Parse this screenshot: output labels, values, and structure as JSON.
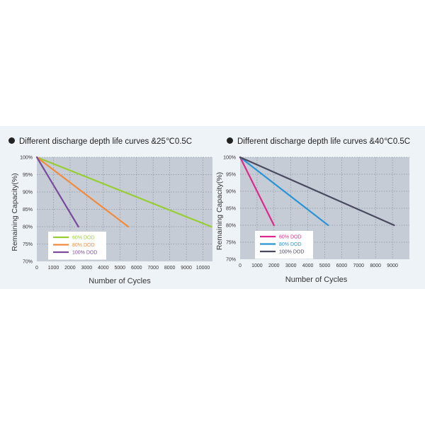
{
  "charts": [
    {
      "title": "Different discharge depth life curves &25℃0.5C",
      "chart_data": {
        "type": "line",
        "xlabel": "Number of Cycles",
        "ylabel": "Remaining Capacity(%)",
        "xlim": [
          0,
          11000
        ],
        "ylim": [
          70,
          100
        ],
        "x_ticks": [
          0,
          1000,
          2000,
          3000,
          4000,
          5000,
          6000,
          7000,
          8000,
          9000,
          10000
        ],
        "x_tick_labels": [
          "0",
          "1000",
          "2000",
          "3000",
          "4000",
          "5000",
          "6000",
          "7000",
          "8000",
          "9000",
          "10000"
        ],
        "y_ticks": [
          70,
          75,
          80,
          85,
          90,
          95,
          100
        ],
        "y_tick_labels": [
          "70%",
          "75%",
          "80%",
          "85%",
          "90%",
          "95%",
          "100%"
        ],
        "grid": true,
        "legend_position": "bottom-left",
        "series": [
          {
            "name": "60% DOD",
            "color": "#9acd32",
            "x": [
              0,
              10500
            ],
            "y": [
              100,
              80
            ]
          },
          {
            "name": "80% DOD",
            "color": "#f28a3c",
            "x": [
              0,
              5500
            ],
            "y": [
              100,
              80
            ]
          },
          {
            "name": "100% DOD",
            "color": "#7a4a9c",
            "x": [
              0,
              2500
            ],
            "y": [
              100,
              80
            ]
          }
        ]
      }
    },
    {
      "title": "Different discharge depth life curves &40℃0.5C",
      "chart_data": {
        "type": "line",
        "xlabel": "Number of Cycles",
        "ylabel": "Remaining Capacity(%)",
        "xlim": [
          0,
          10000
        ],
        "ylim": [
          70,
          100
        ],
        "x_ticks": [
          0,
          1000,
          2000,
          3000,
          4000,
          5000,
          6000,
          7000,
          8000,
          9000
        ],
        "x_tick_labels": [
          "0",
          "1000",
          "2000",
          "3000",
          "4000",
          "5000",
          "6000",
          "7000",
          "8000",
          "9000"
        ],
        "y_ticks": [
          70,
          75,
          80,
          85,
          90,
          95,
          100
        ],
        "y_tick_labels": [
          "70%",
          "75%",
          "80%",
          "85%",
          "90%",
          "95%",
          "100%"
        ],
        "grid": true,
        "legend_position": "bottom-left",
        "series": [
          {
            "name": "60% DOD",
            "color": "#e0288c",
            "x": [
              0,
              2000
            ],
            "y": [
              100,
              80
            ]
          },
          {
            "name": "80% DOD",
            "color": "#2a95d4",
            "x": [
              0,
              5200
            ],
            "y": [
              100,
              80
            ]
          },
          {
            "name": "100% DOD",
            "color": "#4a4a5e",
            "x": [
              0,
              9100
            ],
            "y": [
              100,
              80
            ]
          }
        ]
      }
    }
  ]
}
